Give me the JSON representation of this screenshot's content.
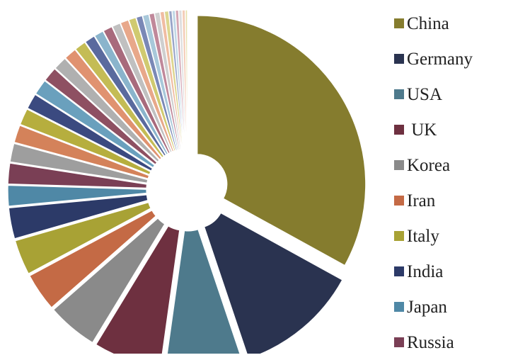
{
  "chart_data": {
    "type": "pie",
    "title": "",
    "categories": [
      "China",
      "Germany",
      "USA",
      "UK",
      "Korea",
      "Iran",
      "Italy",
      "India",
      "Japan",
      "Russia",
      "",
      "",
      "",
      "",
      "",
      "",
      "",
      "",
      "",
      "",
      "",
      "",
      "",
      "",
      "",
      "",
      "",
      "",
      "",
      "",
      "",
      "",
      "",
      "",
      "",
      "",
      ""
    ],
    "values": [
      33.5,
      12.0,
      7.5,
      6.6,
      4.9,
      3.7,
      3.4,
      3.0,
      2.0,
      2.0,
      1.8,
      1.7,
      1.6,
      1.5,
      1.5,
      1.4,
      1.3,
      1.2,
      1.1,
      1.0,
      0.9,
      0.9,
      0.8,
      0.8,
      0.7,
      0.6,
      0.6,
      0.5,
      0.5,
      0.4,
      0.4,
      0.3,
      0.3,
      0.3,
      0.3,
      0.3,
      0.2
    ],
    "colors": [
      "#857c2e",
      "#2a3350",
      "#4e7a8c",
      "#6e3040",
      "#8a8a8a",
      "#c46a45",
      "#a8a235",
      "#2c3a68",
      "#4f88a6",
      "#7a3f55",
      "#9e9e9e",
      "#d4825a",
      "#b6ae3e",
      "#3b4a80",
      "#6aa0bd",
      "#8e5062",
      "#b0b0b0",
      "#e09270",
      "#c4bc55",
      "#5a6a9e",
      "#8ab4cc",
      "#a86a7c",
      "#c0c0c0",
      "#e8a88a",
      "#d0ca70",
      "#7a88b6",
      "#a8c8da",
      "#c0889a",
      "#cfcfcf",
      "#f0bca2",
      "#ddd690",
      "#98a4c8",
      "#c0d8e6",
      "#d4a6b4",
      "#dedede",
      "#f4cdb8",
      "#e6e0aa"
    ],
    "legend": {
      "position": "right",
      "entries": [
        "China",
        "Germany",
        "USA",
        " UK",
        "Korea",
        "Iran",
        "Italy",
        "India",
        "Japan",
        "Russia"
      ]
    },
    "exploded": true
  }
}
